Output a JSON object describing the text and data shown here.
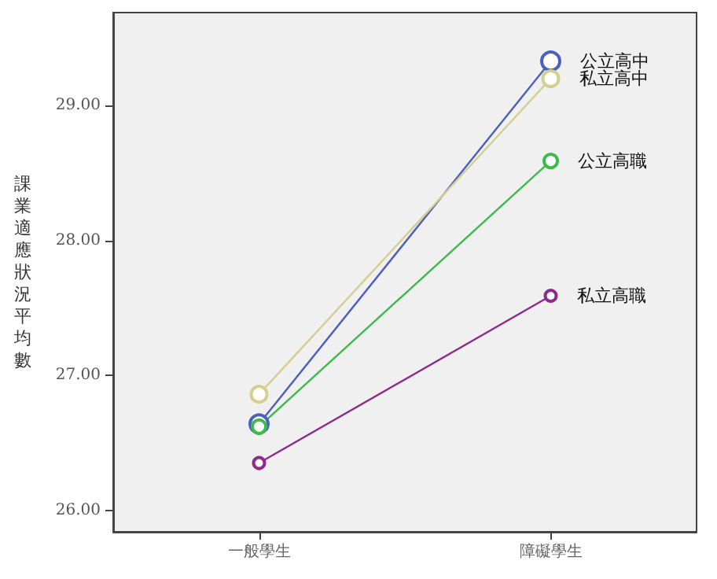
{
  "chart_data": {
    "type": "line",
    "ylabel": "課業適應狀況平均數",
    "categories": [
      "一般學生",
      "障礙學生"
    ],
    "series": [
      {
        "name": "公立高中",
        "color": "#4a5fc1",
        "values": [
          26.64,
          29.33
        ]
      },
      {
        "name": "私立高中",
        "color": "#d4cf8e",
        "values": [
          26.86,
          29.2
        ]
      },
      {
        "name": "公立高職",
        "color": "#3dbb4a",
        "values": [
          26.62,
          28.59
        ]
      },
      {
        "name": "私立高職",
        "color": "#8e2a8e",
        "values": [
          26.35,
          27.59
        ]
      }
    ],
    "ylim": [
      25.84,
      29.69
    ],
    "yticks": [
      {
        "value": 26,
        "label": "26.00"
      },
      {
        "value": 27,
        "label": "27.00"
      },
      {
        "value": 28,
        "label": "28.00"
      },
      {
        "value": 29,
        "label": "29.00"
      }
    ],
    "grid": false,
    "legend": false,
    "marker": "circle",
    "line_style": "solid"
  }
}
